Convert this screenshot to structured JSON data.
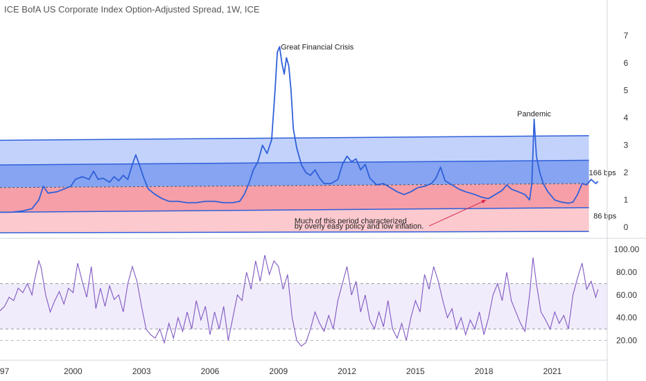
{
  "chart_title": "ICE BofA US Corporate Index Option-Adjusted Spread, 1W, ICE",
  "colors": {
    "price_line": "#2f5fd9",
    "band_top": "#bfd0fb",
    "band_mid": "#7f9ff0",
    "band_low": "#f59aa3",
    "band_bottom": "#fbc6cb",
    "channel_line": "#2f5fd9",
    "rsi_line": "#7e57c2",
    "rsi_fill": "#f1ecfb",
    "arrow": "#d8244a",
    "axis_text": "#333333",
    "grid": "#e0e3eb"
  },
  "chart_data": [
    {
      "type": "line",
      "name": "spread",
      "x_ticks": [
        "97",
        "2000",
        "2003",
        "2006",
        "2009",
        "2012",
        "2015",
        "2018",
        "2021"
      ],
      "y_ticks": [
        "7",
        "6",
        "5",
        "4",
        "3",
        "2",
        "1",
        "0"
      ],
      "ylim": [
        -0.3,
        7.6
      ],
      "xlim": [
        1996.8,
        2023.4
      ],
      "annotations": [
        {
          "text": "Great Financial Crisis",
          "x": 2009.1,
          "y": 6.6
        },
        {
          "text": "Pandemic",
          "x": 2020.2,
          "y": 4.05
        },
        {
          "text": "166 bps",
          "x": 2022.6,
          "y": 2.0
        },
        {
          "text": "86 bps",
          "x": 2022.8,
          "y": 0.42
        },
        {
          "text": "Much of this period characterized",
          "x": 2009.7,
          "y": 0.25
        },
        {
          "text": "by overly easy policy and low inflation.",
          "x": 2009.7,
          "y": 0.05
        }
      ],
      "channel": {
        "x_start": 1996.8,
        "x_end": 2022.6,
        "lines": [
          {
            "y_start": 3.18,
            "y_end": 3.35
          },
          {
            "y_start": 2.28,
            "y_end": 2.45
          },
          {
            "y_start": 1.45,
            "y_end": 1.6
          },
          {
            "y_start": 0.55,
            "y_end": 0.72
          },
          {
            "y_start": -0.2,
            "y_end": -0.15
          }
        ]
      },
      "points": [
        [
          1996.8,
          0.55
        ],
        [
          1997.3,
          0.55
        ],
        [
          1997.8,
          0.6
        ],
        [
          1998.2,
          0.68
        ],
        [
          1998.5,
          1.0
        ],
        [
          1998.7,
          1.5
        ],
        [
          1998.9,
          1.25
        ],
        [
          1999.3,
          1.3
        ],
        [
          1999.6,
          1.4
        ],
        [
          1999.9,
          1.5
        ],
        [
          2000.1,
          1.75
        ],
        [
          2000.4,
          1.85
        ],
        [
          2000.7,
          1.75
        ],
        [
          2000.9,
          2.05
        ],
        [
          2001.1,
          1.75
        ],
        [
          2001.3,
          1.8
        ],
        [
          2001.6,
          1.65
        ],
        [
          2001.8,
          1.85
        ],
        [
          2002.0,
          1.7
        ],
        [
          2002.2,
          1.9
        ],
        [
          2002.4,
          1.75
        ],
        [
          2002.6,
          2.3
        ],
        [
          2002.75,
          2.65
        ],
        [
          2002.9,
          2.3
        ],
        [
          2003.1,
          1.8
        ],
        [
          2003.3,
          1.4
        ],
        [
          2003.6,
          1.2
        ],
        [
          2003.9,
          1.05
        ],
        [
          2004.2,
          0.95
        ],
        [
          2004.6,
          0.95
        ],
        [
          2005.0,
          0.9
        ],
        [
          2005.4,
          0.9
        ],
        [
          2005.8,
          0.95
        ],
        [
          2006.2,
          0.95
        ],
        [
          2006.6,
          0.9
        ],
        [
          2007.0,
          0.9
        ],
        [
          2007.3,
          0.95
        ],
        [
          2007.5,
          1.2
        ],
        [
          2007.7,
          1.6
        ],
        [
          2007.9,
          2.1
        ],
        [
          2008.1,
          2.4
        ],
        [
          2008.3,
          3.0
        ],
        [
          2008.5,
          2.7
        ],
        [
          2008.7,
          3.2
        ],
        [
          2008.85,
          5.0
        ],
        [
          2008.95,
          6.4
        ],
        [
          2009.05,
          6.6
        ],
        [
          2009.15,
          6.0
        ],
        [
          2009.25,
          5.6
        ],
        [
          2009.35,
          6.2
        ],
        [
          2009.45,
          5.9
        ],
        [
          2009.55,
          5.0
        ],
        [
          2009.65,
          3.6
        ],
        [
          2009.8,
          2.9
        ],
        [
          2010.0,
          2.3
        ],
        [
          2010.2,
          2.0
        ],
        [
          2010.4,
          1.9
        ],
        [
          2010.6,
          2.1
        ],
        [
          2010.8,
          1.8
        ],
        [
          2011.0,
          1.6
        ],
        [
          2011.3,
          1.6
        ],
        [
          2011.6,
          1.75
        ],
        [
          2011.8,
          2.3
        ],
        [
          2012.0,
          2.6
        ],
        [
          2012.2,
          2.4
        ],
        [
          2012.4,
          2.5
        ],
        [
          2012.6,
          2.1
        ],
        [
          2012.8,
          2.3
        ],
        [
          2013.0,
          1.8
        ],
        [
          2013.3,
          1.55
        ],
        [
          2013.6,
          1.6
        ],
        [
          2013.9,
          1.45
        ],
        [
          2014.2,
          1.3
        ],
        [
          2014.5,
          1.2
        ],
        [
          2014.8,
          1.3
        ],
        [
          2015.1,
          1.45
        ],
        [
          2015.4,
          1.5
        ],
        [
          2015.7,
          1.6
        ],
        [
          2015.9,
          1.8
        ],
        [
          2016.1,
          2.2
        ],
        [
          2016.3,
          1.7
        ],
        [
          2016.6,
          1.55
        ],
        [
          2016.9,
          1.4
        ],
        [
          2017.2,
          1.3
        ],
        [
          2017.6,
          1.2
        ],
        [
          2017.9,
          1.1
        ],
        [
          2018.2,
          1.05
        ],
        [
          2018.5,
          1.2
        ],
        [
          2018.8,
          1.35
        ],
        [
          2019.0,
          1.55
        ],
        [
          2019.2,
          1.4
        ],
        [
          2019.5,
          1.3
        ],
        [
          2019.8,
          1.2
        ],
        [
          2020.0,
          1.0
        ],
        [
          2020.1,
          1.6
        ],
        [
          2020.2,
          3.95
        ],
        [
          2020.3,
          2.6
        ],
        [
          2020.45,
          2.0
        ],
        [
          2020.6,
          1.6
        ],
        [
          2020.8,
          1.3
        ],
        [
          2021.1,
          1.0
        ],
        [
          2021.4,
          0.92
        ],
        [
          2021.7,
          0.88
        ],
        [
          2021.9,
          0.92
        ],
        [
          2022.1,
          1.2
        ],
        [
          2022.3,
          1.6
        ],
        [
          2022.5,
          1.55
        ],
        [
          2022.7,
          1.75
        ],
        [
          2022.9,
          1.6
        ],
        [
          2023.0,
          1.68
        ]
      ]
    },
    {
      "type": "line",
      "name": "RSI",
      "y_ticks": [
        "100.00",
        "80.00",
        "60.00",
        "40.00",
        "20.00"
      ],
      "ylim": [
        5,
        105
      ],
      "bands": [
        70,
        30
      ],
      "extra_line": 20,
      "points": [
        [
          1996.8,
          46
        ],
        [
          1997.0,
          50
        ],
        [
          1997.2,
          58
        ],
        [
          1997.4,
          55
        ],
        [
          1997.6,
          66
        ],
        [
          1997.8,
          62
        ],
        [
          1998.0,
          70
        ],
        [
          1998.2,
          60
        ],
        [
          1998.3,
          72
        ],
        [
          1998.5,
          90
        ],
        [
          1998.6,
          84
        ],
        [
          1998.8,
          60
        ],
        [
          1999.0,
          45
        ],
        [
          1999.2,
          55
        ],
        [
          1999.4,
          63
        ],
        [
          1999.6,
          52
        ],
        [
          1999.8,
          66
        ],
        [
          2000.0,
          62
        ],
        [
          2000.2,
          88
        ],
        [
          2000.4,
          72
        ],
        [
          2000.6,
          58
        ],
        [
          2000.8,
          85
        ],
        [
          2001.0,
          48
        ],
        [
          2001.2,
          66
        ],
        [
          2001.4,
          50
        ],
        [
          2001.6,
          68
        ],
        [
          2001.8,
          56
        ],
        [
          2002.0,
          60
        ],
        [
          2002.2,
          45
        ],
        [
          2002.4,
          70
        ],
        [
          2002.6,
          85
        ],
        [
          2002.8,
          72
        ],
        [
          2003.0,
          50
        ],
        [
          2003.2,
          30
        ],
        [
          2003.4,
          25
        ],
        [
          2003.6,
          22
        ],
        [
          2003.8,
          30
        ],
        [
          2004.0,
          18
        ],
        [
          2004.2,
          35
        ],
        [
          2004.4,
          22
        ],
        [
          2004.6,
          40
        ],
        [
          2004.8,
          28
        ],
        [
          2005.0,
          45
        ],
        [
          2005.2,
          30
        ],
        [
          2005.4,
          55
        ],
        [
          2005.6,
          38
        ],
        [
          2005.8,
          50
        ],
        [
          2006.0,
          25
        ],
        [
          2006.2,
          45
        ],
        [
          2006.4,
          30
        ],
        [
          2006.6,
          50
        ],
        [
          2006.8,
          20
        ],
        [
          2007.0,
          40
        ],
        [
          2007.2,
          60
        ],
        [
          2007.4,
          55
        ],
        [
          2007.6,
          80
        ],
        [
          2007.8,
          65
        ],
        [
          2008.0,
          90
        ],
        [
          2008.2,
          72
        ],
        [
          2008.4,
          95
        ],
        [
          2008.6,
          78
        ],
        [
          2008.8,
          90
        ],
        [
          2009.0,
          85
        ],
        [
          2009.2,
          65
        ],
        [
          2009.4,
          78
        ],
        [
          2009.6,
          40
        ],
        [
          2009.8,
          20
        ],
        [
          2010.0,
          15
        ],
        [
          2010.2,
          18
        ],
        [
          2010.4,
          30
        ],
        [
          2010.6,
          45
        ],
        [
          2010.8,
          35
        ],
        [
          2011.0,
          28
        ],
        [
          2011.2,
          42
        ],
        [
          2011.4,
          30
        ],
        [
          2011.6,
          55
        ],
        [
          2011.8,
          70
        ],
        [
          2012.0,
          85
        ],
        [
          2012.2,
          60
        ],
        [
          2012.4,
          72
        ],
        [
          2012.6,
          45
        ],
        [
          2012.8,
          60
        ],
        [
          2013.0,
          38
        ],
        [
          2013.2,
          30
        ],
        [
          2013.4,
          45
        ],
        [
          2013.6,
          32
        ],
        [
          2013.8,
          55
        ],
        [
          2014.0,
          30
        ],
        [
          2014.2,
          22
        ],
        [
          2014.4,
          35
        ],
        [
          2014.6,
          20
        ],
        [
          2014.8,
          40
        ],
        [
          2015.0,
          55
        ],
        [
          2015.2,
          45
        ],
        [
          2015.4,
          78
        ],
        [
          2015.6,
          65
        ],
        [
          2015.8,
          85
        ],
        [
          2016.0,
          72
        ],
        [
          2016.2,
          55
        ],
        [
          2016.4,
          40
        ],
        [
          2016.6,
          48
        ],
        [
          2016.8,
          30
        ],
        [
          2017.0,
          40
        ],
        [
          2017.2,
          25
        ],
        [
          2017.4,
          38
        ],
        [
          2017.6,
          30
        ],
        [
          2017.8,
          45
        ],
        [
          2018.0,
          25
        ],
        [
          2018.2,
          40
        ],
        [
          2018.4,
          60
        ],
        [
          2018.6,
          70
        ],
        [
          2018.8,
          55
        ],
        [
          2019.0,
          80
        ],
        [
          2019.2,
          55
        ],
        [
          2019.4,
          45
        ],
        [
          2019.6,
          35
        ],
        [
          2019.8,
          28
        ],
        [
          2020.0,
          60
        ],
        [
          2020.15,
          93
        ],
        [
          2020.3,
          70
        ],
        [
          2020.5,
          45
        ],
        [
          2020.7,
          38
        ],
        [
          2020.9,
          30
        ],
        [
          2021.1,
          45
        ],
        [
          2021.3,
          35
        ],
        [
          2021.5,
          42
        ],
        [
          2021.7,
          30
        ],
        [
          2021.9,
          60
        ],
        [
          2022.1,
          75
        ],
        [
          2022.3,
          88
        ],
        [
          2022.5,
          65
        ],
        [
          2022.7,
          72
        ],
        [
          2022.9,
          58
        ],
        [
          2023.0,
          65
        ]
      ]
    }
  ]
}
